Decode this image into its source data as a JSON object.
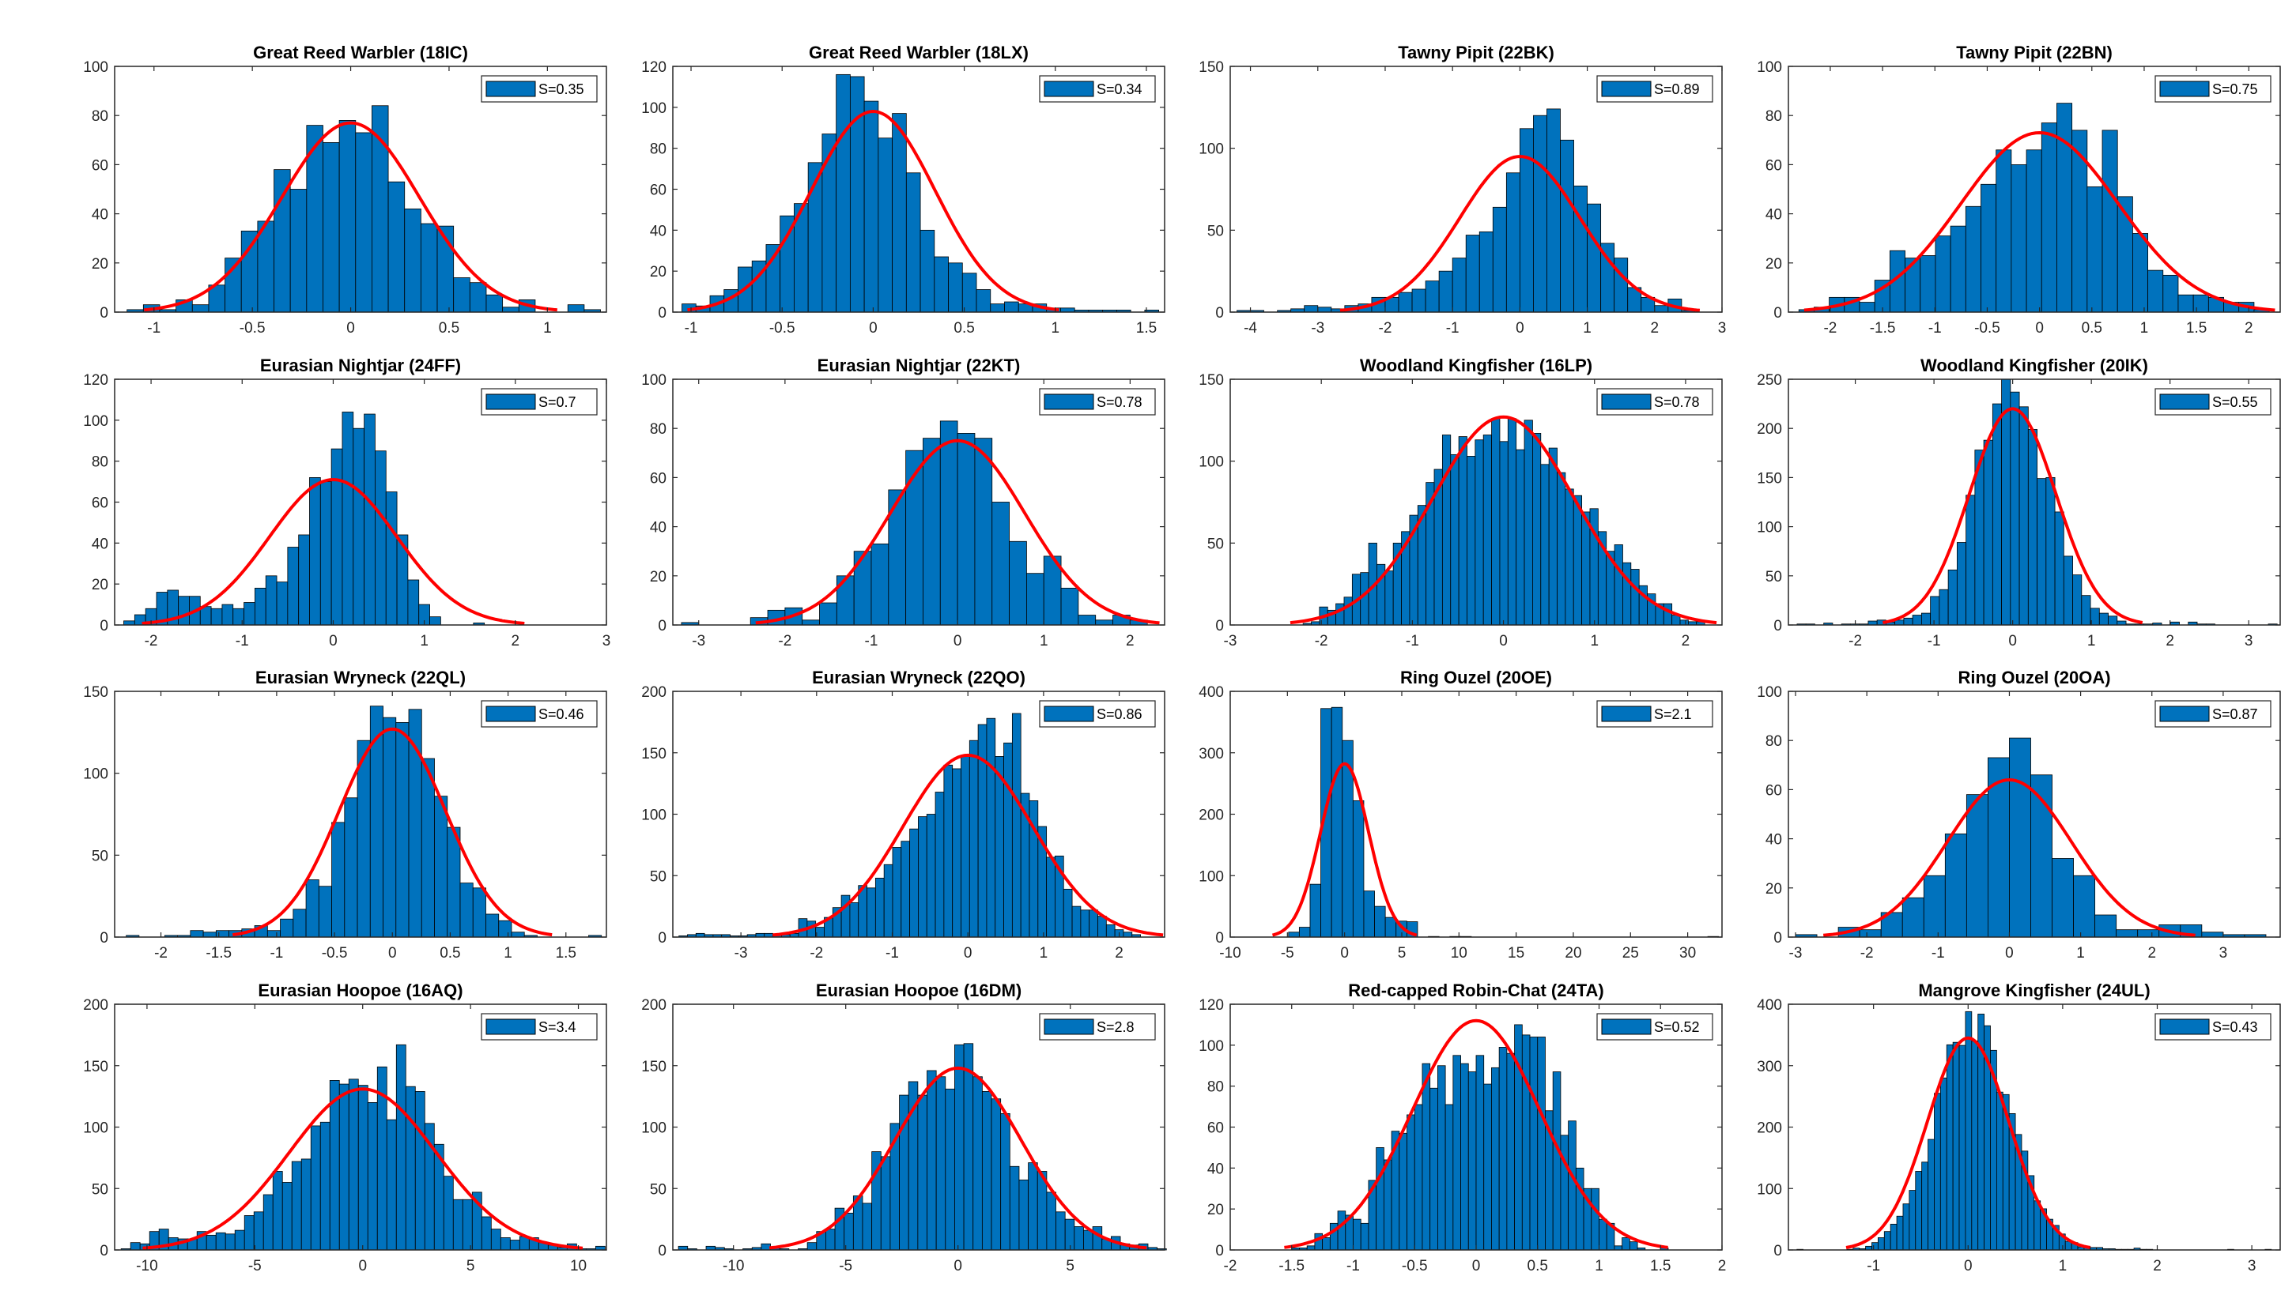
{
  "figure": {
    "bar_color": "#0072BD",
    "bar_edge_color": "#000000",
    "fit_color": "#FF0000",
    "layout": "4x4 grid"
  },
  "chart_data": [
    {
      "type": "bar",
      "title": "Great Reed Warbler (18IC)",
      "legend": "S=0.35",
      "legend_position": "top-right",
      "xlim": [
        -1.2,
        1.3
      ],
      "ylim": [
        0,
        100
      ],
      "xticks": [
        -1,
        -0.5,
        0,
        0.5,
        1
      ],
      "yticks": [
        0,
        20,
        40,
        60,
        80,
        100
      ],
      "bin_start": -1.137,
      "bin_width": 0.083,
      "counts": [
        1,
        3,
        1,
        5,
        3,
        11,
        22,
        33,
        37,
        58,
        50,
        76,
        69,
        78,
        73,
        84,
        53,
        42,
        36,
        35,
        14,
        12,
        7,
        2,
        5,
        0,
        0,
        3,
        1
      ],
      "fit": {
        "mean": 0,
        "sd": 0.35,
        "peak": 77
      }
    },
    {
      "type": "bar",
      "title": "Great Reed Warbler (18LX)",
      "legend": "S=0.34",
      "legend_position": "top-right",
      "xlim": [
        -1.1,
        1.6
      ],
      "ylim": [
        0,
        120
      ],
      "xticks": [
        -1,
        -0.5,
        0,
        0.5,
        1,
        1.5
      ],
      "yticks": [
        0,
        20,
        40,
        60,
        80,
        100,
        120
      ],
      "bin_start": -1.05,
      "bin_width": 0.077,
      "counts": [
        4,
        3,
        8,
        11,
        22,
        25,
        33,
        47,
        53,
        73,
        87,
        116,
        115,
        103,
        85,
        97,
        68,
        40,
        27,
        24,
        19,
        11,
        4,
        5,
        4,
        4,
        2,
        2,
        1,
        1,
        1,
        1,
        0,
        1
      ],
      "fit": {
        "mean": 0,
        "sd": 0.34,
        "peak": 98
      }
    },
    {
      "type": "bar",
      "title": "Tawny Pipit (22BK)",
      "legend": "S=0.89",
      "legend_position": "top-right",
      "xlim": [
        -4.3,
        3
      ],
      "ylim": [
        0,
        150
      ],
      "xticks": [
        -4,
        -3,
        -2,
        -1,
        0,
        1,
        2,
        3
      ],
      "yticks": [
        0,
        50,
        100,
        150
      ],
      "bin_start": -4.2,
      "bin_width": 0.2,
      "counts": [
        1,
        1,
        0,
        1,
        2,
        4,
        3,
        2,
        4,
        5,
        9,
        9,
        12,
        14,
        19,
        25,
        33,
        47,
        49,
        64,
        85,
        112,
        120,
        124,
        105,
        77,
        66,
        42,
        33,
        15,
        9,
        4,
        8,
        1
      ],
      "fit": {
        "mean": 0,
        "sd": 0.89,
        "peak": 95
      }
    },
    {
      "type": "bar",
      "title": "Tawny Pipit (22BN)",
      "legend": "S=0.75",
      "legend_position": "top-right",
      "xlim": [
        -2.4,
        2.3
      ],
      "ylim": [
        0,
        100
      ],
      "xticks": [
        -2,
        -1.5,
        -1,
        -0.5,
        0,
        0.5,
        1,
        1.5,
        2
      ],
      "yticks": [
        0,
        20,
        40,
        60,
        80,
        100
      ],
      "bin_start": -2.3,
      "bin_width": 0.145,
      "counts": [
        1,
        2,
        6,
        6,
        4,
        13,
        25,
        22,
        23,
        31,
        35,
        43,
        52,
        66,
        60,
        66,
        77,
        85,
        74,
        51,
        74,
        47,
        32,
        17,
        15,
        7,
        7,
        6,
        4,
        4,
        1
      ],
      "fit": {
        "mean": 0,
        "sd": 0.75,
        "peak": 73
      }
    },
    {
      "type": "bar",
      "title": "Eurasian Nightjar (24FF)",
      "legend": "S=0.7",
      "legend_position": "top-right",
      "xlim": [
        -2.4,
        3
      ],
      "ylim": [
        0,
        120
      ],
      "xticks": [
        -2,
        -1,
        0,
        1,
        2,
        3
      ],
      "yticks": [
        0,
        20,
        40,
        60,
        80,
        100,
        120
      ],
      "bin_start": -2.3,
      "bin_width": 0.12,
      "counts": [
        2,
        5,
        8,
        16,
        17,
        14,
        14,
        9,
        8,
        10,
        8,
        11,
        18,
        24,
        21,
        38,
        44,
        72,
        70,
        86,
        104,
        96,
        103,
        85,
        65,
        44,
        22,
        10,
        4,
        0,
        0,
        0,
        1
      ],
      "fit": {
        "mean": 0,
        "sd": 0.7,
        "peak": 71
      }
    },
    {
      "type": "bar",
      "title": "Eurasian Nightjar (22KT)",
      "legend": "S=0.78",
      "legend_position": "top-right",
      "xlim": [
        -3.3,
        2.4
      ],
      "ylim": [
        0,
        100
      ],
      "xticks": [
        -3,
        -2,
        -1,
        0,
        1,
        2
      ],
      "yticks": [
        0,
        20,
        40,
        60,
        80,
        100
      ],
      "bin_start": -3.2,
      "bin_width": 0.2,
      "counts": [
        1,
        0,
        0,
        0,
        3,
        6,
        7,
        2,
        9,
        20,
        30,
        33,
        55,
        71,
        76,
        83,
        78,
        76,
        50,
        34,
        21,
        28,
        15,
        4,
        2,
        4,
        2
      ],
      "fit": {
        "mean": 0,
        "sd": 0.78,
        "peak": 75
      }
    },
    {
      "type": "bar",
      "title": "Woodland Kingfisher (16LP)",
      "legend": "S=0.78",
      "legend_position": "top-right",
      "xlim": [
        -3,
        2.4
      ],
      "ylim": [
        0,
        150
      ],
      "xticks": [
        -3,
        -2,
        -1,
        0,
        1,
        2
      ],
      "yticks": [
        0,
        50,
        100,
        150
      ],
      "bin_start": -2.2,
      "bin_width": 0.09,
      "counts": [
        1,
        2,
        11,
        9,
        13,
        17,
        31,
        32,
        50,
        37,
        33,
        50,
        57,
        67,
        73,
        87,
        95,
        116,
        104,
        115,
        103,
        113,
        116,
        126,
        112,
        126,
        107,
        125,
        117,
        98,
        108,
        93,
        83,
        79,
        69,
        71,
        57,
        45,
        49,
        38,
        34,
        24,
        19,
        13,
        13,
        6,
        3,
        2,
        2
      ],
      "fit": {
        "mean": 0,
        "sd": 0.78,
        "peak": 127
      }
    },
    {
      "type": "bar",
      "title": "Woodland Kingfisher (20IK)",
      "legend": "S=0.55",
      "legend_position": "top-right",
      "xlim": [
        -2.85,
        3.4
      ],
      "ylim": [
        0,
        250
      ],
      "xticks": [
        -2,
        -1,
        0,
        1,
        2,
        3
      ],
      "yticks": [
        0,
        50,
        100,
        150,
        200,
        250
      ],
      "bin_start": -2.74,
      "bin_width": 0.113,
      "counts": [
        1,
        1,
        0,
        2,
        0,
        1,
        1,
        1,
        4,
        5,
        3,
        5,
        7,
        10,
        12,
        29,
        36,
        56,
        84,
        132,
        178,
        188,
        225,
        250,
        237,
        222,
        199,
        149,
        150,
        115,
        70,
        51,
        30,
        17,
        12,
        9,
        4,
        1,
        1,
        1,
        2,
        0,
        3,
        0,
        3,
        1,
        1,
        0,
        0,
        0,
        0,
        0,
        0,
        1
      ],
      "fit": {
        "mean": 0,
        "sd": 0.55,
        "peak": 220
      }
    },
    {
      "type": "bar",
      "title": "Eurasian Wryneck (22QL)",
      "legend": "S=0.46",
      "legend_position": "top-right",
      "xlim": [
        -2.4,
        1.85
      ],
      "ylim": [
        0,
        150
      ],
      "xticks": [
        -2,
        -1.5,
        -1,
        -0.5,
        0,
        0.5,
        1,
        1.5
      ],
      "yticks": [
        0,
        50,
        100,
        150
      ],
      "bin_start": -2.3,
      "bin_width": 0.111,
      "counts": [
        1,
        0,
        0,
        1,
        1,
        4,
        3,
        4,
        4,
        5,
        7,
        4,
        11,
        17,
        35,
        31,
        70,
        85,
        120,
        141,
        134,
        131,
        139,
        109,
        86,
        67,
        33,
        30,
        14,
        10,
        3,
        1,
        0,
        0,
        0,
        0,
        1
      ],
      "fit": {
        "mean": 0,
        "sd": 0.46,
        "peak": 127
      }
    },
    {
      "type": "bar",
      "title": "Eurasian Wryneck (22QO)",
      "legend": "S=0.86",
      "legend_position": "top-right",
      "xlim": [
        -3.9,
        2.6
      ],
      "ylim": [
        0,
        200
      ],
      "xticks": [
        -3,
        -2,
        -1,
        0,
        1,
        2
      ],
      "yticks": [
        0,
        50,
        100,
        150,
        200
      ],
      "bin_start": -3.82,
      "bin_width": 0.113,
      "counts": [
        1,
        2,
        3,
        2,
        2,
        2,
        1,
        1,
        2,
        3,
        3,
        2,
        2,
        3,
        15,
        13,
        8,
        16,
        24,
        34,
        28,
        42,
        40,
        48,
        59,
        73,
        78,
        88,
        98,
        100,
        118,
        140,
        137,
        148,
        160,
        173,
        178,
        147,
        158,
        182,
        117,
        111,
        90,
        65,
        66,
        39,
        25,
        22,
        22,
        17,
        10,
        6,
        4,
        2
      ],
      "fit": {
        "mean": 0,
        "sd": 0.86,
        "peak": 148
      }
    },
    {
      "type": "bar",
      "title": "Ring Ouzel (20OE)",
      "legend": "S=2.1",
      "legend_position": "top-right",
      "xlim": [
        -10,
        33
      ],
      "ylim": [
        0,
        400
      ],
      "xticks": [
        -10,
        -5,
        0,
        5,
        10,
        15,
        20,
        25,
        30
      ],
      "yticks": [
        0,
        100,
        200,
        300,
        400
      ],
      "bin_start": -4.9,
      "bin_width": 0.94,
      "counts": [
        8,
        16,
        86,
        372,
        374,
        320,
        222,
        75,
        50,
        32,
        26,
        25,
        0,
        1,
        0,
        1,
        1,
        0,
        0,
        0,
        0,
        0,
        0,
        0,
        0,
        0,
        0,
        0,
        0,
        0,
        0,
        0,
        0,
        0,
        0,
        0,
        0,
        0,
        0,
        1
      ],
      "fit": {
        "mean": 0,
        "sd": 2.1,
        "peak": 282
      }
    },
    {
      "type": "bar",
      "title": "Ring Ouzel (20OA)",
      "legend": "S=0.87",
      "legend_position": "top-right",
      "xlim": [
        -3.1,
        3.8
      ],
      "ylim": [
        0,
        100
      ],
      "xticks": [
        -3,
        -2,
        -1,
        0,
        1,
        2,
        3
      ],
      "yticks": [
        0,
        20,
        40,
        60,
        80,
        100
      ],
      "bin_start": -3.0,
      "bin_width": 0.3,
      "counts": [
        1,
        0,
        4,
        3,
        10,
        16,
        25,
        42,
        58,
        73,
        81,
        66,
        32,
        25,
        9,
        3,
        3,
        5,
        5,
        2,
        1,
        1
      ],
      "fit": {
        "mean": 0,
        "sd": 0.87,
        "peak": 64
      }
    },
    {
      "type": "bar",
      "title": "Eurasian Hoopoe (16AQ)",
      "legend": "S=3.4",
      "legend_position": "top-right",
      "xlim": [
        -11.5,
        11.3
      ],
      "ylim": [
        0,
        200
      ],
      "xticks": [
        -10,
        -5,
        0,
        5,
        10
      ],
      "yticks": [
        0,
        50,
        100,
        150,
        200
      ],
      "bin_start": -11.2,
      "bin_width": 0.44,
      "counts": [
        1,
        6,
        5,
        15,
        17,
        10,
        9,
        9,
        15,
        12,
        14,
        13,
        16,
        28,
        31,
        45,
        64,
        55,
        72,
        74,
        101,
        104,
        138,
        135,
        139,
        134,
        120,
        149,
        106,
        167,
        133,
        129,
        103,
        86,
        60,
        41,
        41,
        47,
        27,
        17,
        10,
        8,
        11,
        10,
        6,
        4,
        2,
        5,
        1,
        1,
        3
      ],
      "fit": {
        "mean": 0,
        "sd": 3.4,
        "peak": 131
      }
    },
    {
      "type": "bar",
      "title": "Eurasian Hoopoe (16DM)",
      "legend": "S=2.8",
      "legend_position": "top-right",
      "xlim": [
        -12.7,
        9.2
      ],
      "ylim": [
        0,
        200
      ],
      "xticks": [
        -10,
        -5,
        0,
        5
      ],
      "yticks": [
        0,
        50,
        100,
        150,
        200
      ],
      "bin_start": -12.45,
      "bin_width": 0.41,
      "counts": [
        3,
        1,
        0,
        3,
        2,
        1,
        0,
        1,
        2,
        5,
        2,
        1,
        0,
        1,
        6,
        15,
        17,
        34,
        30,
        44,
        38,
        80,
        76,
        103,
        126,
        137,
        126,
        146,
        141,
        131,
        167,
        168,
        141,
        129,
        123,
        111,
        68,
        57,
        71,
        64,
        47,
        31,
        25,
        19,
        16,
        19,
        9,
        11,
        5,
        4,
        5,
        2,
        1
      ],
      "fit": {
        "mean": 0,
        "sd": 2.8,
        "peak": 148
      }
    },
    {
      "type": "bar",
      "title": "Red-capped Robin-Chat (24TA)",
      "legend": "S=0.52",
      "legend_position": "top-right",
      "xlim": [
        -2,
        2
      ],
      "ylim": [
        0,
        120
      ],
      "xticks": [
        -2,
        -1.5,
        -1,
        -0.5,
        0,
        0.5,
        1,
        1.5,
        2
      ],
      "yticks": [
        0,
        20,
        40,
        60,
        80,
        100,
        120
      ],
      "bin_start": -1.5,
      "bin_width": 0.0625,
      "counts": [
        1,
        1,
        2,
        8,
        6,
        13,
        19,
        17,
        15,
        13,
        34,
        50,
        44,
        58,
        57,
        66,
        71,
        91,
        79,
        90,
        71,
        95,
        91,
        87,
        95,
        81,
        89,
        99,
        96,
        110,
        105,
        104,
        104,
        68,
        87,
        56,
        63,
        40,
        30,
        30,
        15,
        13,
        2,
        6,
        4,
        1,
        0,
        0,
        1
      ],
      "fit": {
        "mean": 0,
        "sd": 0.52,
        "peak": 112
      }
    },
    {
      "type": "bar",
      "title": "Mangrove Kingfisher (24UL)",
      "legend": "S=0.43",
      "legend_position": "top-right",
      "xlim": [
        -1.9,
        3.3
      ],
      "ylim": [
        0,
        400
      ],
      "xticks": [
        -1,
        0,
        1,
        2,
        3
      ],
      "yticks": [
        0,
        100,
        200,
        300,
        400
      ],
      "bin_start": -1.81,
      "bin_width": 0.066,
      "counts": [
        1,
        0,
        0,
        0,
        0,
        0,
        0,
        0,
        1,
        3,
        2,
        6,
        12,
        20,
        30,
        42,
        55,
        75,
        97,
        128,
        143,
        180,
        255,
        280,
        334,
        338,
        333,
        388,
        340,
        384,
        365,
        325,
        257,
        253,
        222,
        188,
        161,
        121,
        80,
        67,
        50,
        40,
        26,
        14,
        12,
        5,
        6,
        4,
        4,
        2,
        2,
        1,
        1,
        1,
        3,
        1,
        1,
        0,
        0,
        0,
        0,
        0,
        0,
        0,
        0,
        0,
        0,
        0,
        0,
        1,
        0,
        0,
        0,
        0,
        0,
        1
      ],
      "fit": {
        "mean": 0,
        "sd": 0.43,
        "peak": 345
      }
    }
  ]
}
